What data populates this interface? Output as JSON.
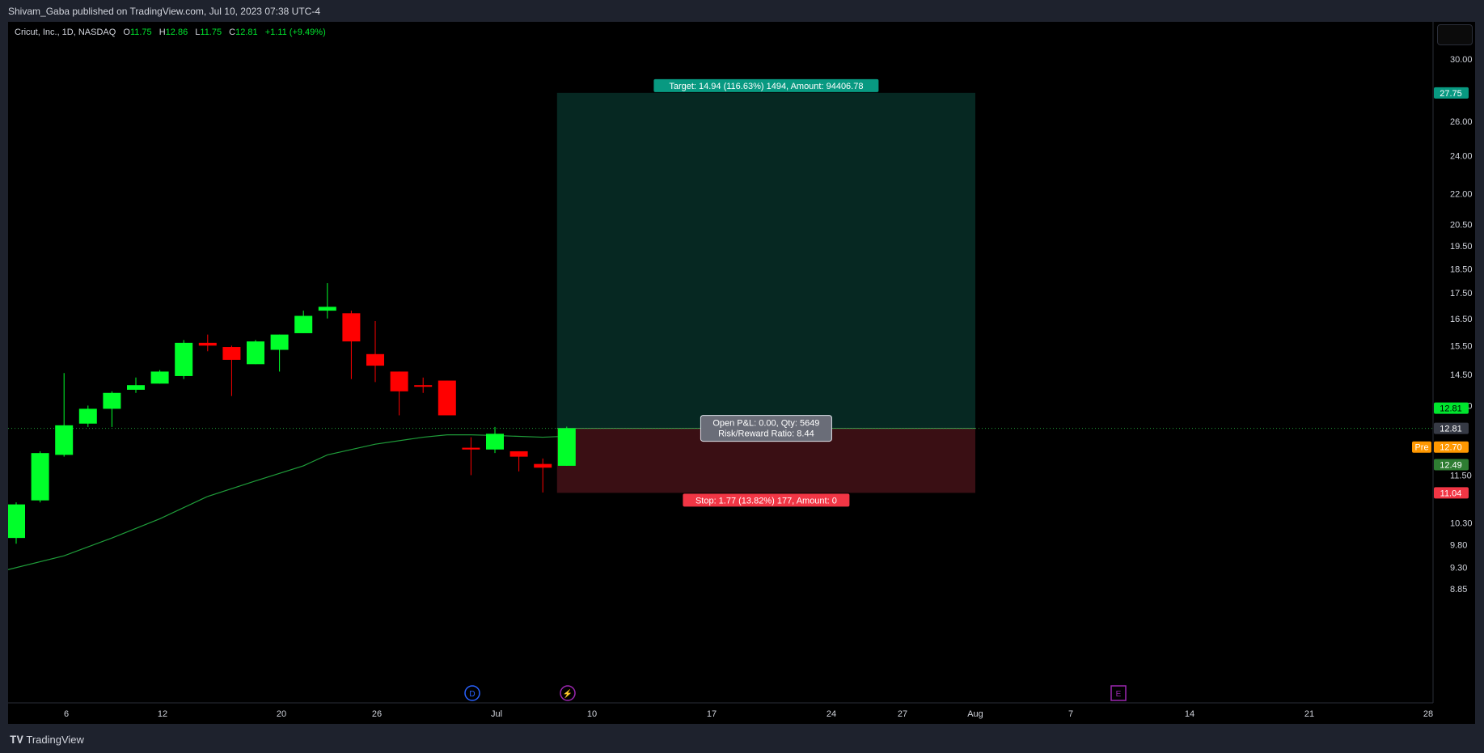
{
  "header": {
    "publisher_text": "Shivam_Gaba published on TradingView.com, Jul 10, 2023 07:38 UTC-4"
  },
  "legend": {
    "symbol": "Cricut, Inc., 1D, NASDAQ",
    "o_label": "O",
    "o": "11.75",
    "h_label": "H",
    "h": "12.86",
    "l_label": "L",
    "l": "11.75",
    "c_label": "C",
    "c": "12.81",
    "change": "+1.11 (+9.49%)"
  },
  "footer": {
    "brand": "TradingView"
  },
  "position": {
    "target_label": "Target: 14.94 (116.63%) 1494, Amount: 94406.78",
    "stop_label": "Stop: 1.77 (13.82%) 177, Amount: 0",
    "pnl_line1": "Open P&L: 0.00, Qty: 5649",
    "pnl_line2": "Risk/Reward Ratio: 8.44"
  },
  "colors": {
    "up": "#00ff2a",
    "down": "#ff0000",
    "ma": "#1f9d3a",
    "target_zone": "#062822",
    "stop_zone": "#3a0f14",
    "target_tag": "#089981",
    "stop_tag": "#f23645",
    "pre_tag": "#ff9800"
  },
  "chart_data": {
    "type": "candlestick",
    "symbol": "Cricut, Inc.",
    "interval": "1D",
    "exchange": "NASDAQ",
    "scale": "log",
    "x_ticks": [
      "6",
      "12",
      "20",
      "26",
      "Jul",
      "10",
      "17",
      "24",
      "27",
      "Aug",
      "7",
      "14",
      "21",
      "28"
    ],
    "y_ticks": [
      "30.00",
      "26.00",
      "24.00",
      "22.00",
      "20.50",
      "19.50",
      "18.50",
      "17.50",
      "16.50",
      "15.50",
      "14.50",
      "13.50",
      "11.50",
      "10.30",
      "9.80",
      "9.30",
      "8.85"
    ],
    "candles": [
      {
        "o": 9.95,
        "h": 10.8,
        "l": 9.82,
        "c": 10.75
      },
      {
        "o": 10.85,
        "h": 12.15,
        "l": 10.8,
        "c": 12.1
      },
      {
        "o": 12.05,
        "h": 14.55,
        "l": 12.0,
        "c": 12.9
      },
      {
        "o": 12.95,
        "h": 13.5,
        "l": 12.85,
        "c": 13.4
      },
      {
        "o": 13.4,
        "h": 13.95,
        "l": 12.85,
        "c": 13.9
      },
      {
        "o": 14.0,
        "h": 14.4,
        "l": 13.9,
        "c": 14.15
      },
      {
        "o": 14.2,
        "h": 14.65,
        "l": 14.2,
        "c": 14.6
      },
      {
        "o": 14.45,
        "h": 15.7,
        "l": 14.35,
        "c": 15.6
      },
      {
        "o": 15.6,
        "h": 15.9,
        "l": 15.3,
        "c": 15.5
      },
      {
        "o": 15.45,
        "h": 15.5,
        "l": 13.8,
        "c": 15.0
      },
      {
        "o": 14.85,
        "h": 15.7,
        "l": 14.85,
        "c": 15.65
      },
      {
        "o": 15.35,
        "h": 15.9,
        "l": 14.6,
        "c": 15.9
      },
      {
        "o": 15.95,
        "h": 16.8,
        "l": 15.95,
        "c": 16.6
      },
      {
        "o": 16.8,
        "h": 17.9,
        "l": 16.5,
        "c": 16.95
      },
      {
        "o": 16.7,
        "h": 16.8,
        "l": 14.35,
        "c": 15.65
      },
      {
        "o": 15.2,
        "h": 16.4,
        "l": 14.25,
        "c": 14.8
      },
      {
        "o": 14.6,
        "h": 14.6,
        "l": 13.2,
        "c": 13.95
      },
      {
        "o": 14.15,
        "h": 14.4,
        "l": 13.9,
        "c": 14.1
      },
      {
        "o": 14.3,
        "h": 14.3,
        "l": 13.2,
        "c": 13.2
      },
      {
        "o": 12.25,
        "h": 12.55,
        "l": 11.5,
        "c": 12.2
      },
      {
        "o": 12.2,
        "h": 12.85,
        "l": 12.1,
        "c": 12.65
      },
      {
        "o": 12.15,
        "h": 12.1,
        "l": 11.6,
        "c": 12.0
      },
      {
        "o": 11.8,
        "h": 11.95,
        "l": 11.05,
        "c": 11.7
      },
      {
        "o": 11.75,
        "h": 12.86,
        "l": 11.75,
        "c": 12.81
      }
    ],
    "candle_x_dates": [
      "May 31",
      "Jun 1",
      "Jun 2",
      "Jun 5",
      "Jun 6",
      "Jun 7",
      "Jun 8",
      "Jun 9",
      "Jun 12",
      "Jun 13",
      "Jun 14",
      "Jun 15",
      "Jun 16",
      "Jun 20",
      "Jun 21",
      "Jun 22",
      "Jun 23",
      "Jun 26",
      "Jun 27",
      "Jun 28",
      "Jun 29",
      "Jun 30",
      "Jul 3",
      "Jul 5"
    ],
    "moving_average": [
      [
        0,
        9.25
      ],
      [
        2,
        9.55
      ],
      [
        4,
        9.95
      ],
      [
        6,
        10.4
      ],
      [
        8,
        10.95
      ],
      [
        10,
        11.35
      ],
      [
        12,
        11.75
      ],
      [
        13,
        12.05
      ],
      [
        15,
        12.35
      ],
      [
        17,
        12.55
      ],
      [
        18,
        12.62
      ],
      [
        19,
        12.62
      ],
      [
        20,
        12.6
      ],
      [
        22,
        12.55
      ],
      [
        23,
        12.58
      ]
    ],
    "price_tags": {
      "target": "27.75",
      "last": "12.81",
      "last_dark": "12.81",
      "pre_label": "Pre",
      "pre": "12.70",
      "other": "12.49",
      "stop": "11.04"
    },
    "position_tool": {
      "entry": 12.81,
      "target": 27.75,
      "stop": 11.04,
      "start_index": 23,
      "end_label": "Aug"
    },
    "event_markers": [
      "D",
      "⚡",
      "E"
    ]
  }
}
